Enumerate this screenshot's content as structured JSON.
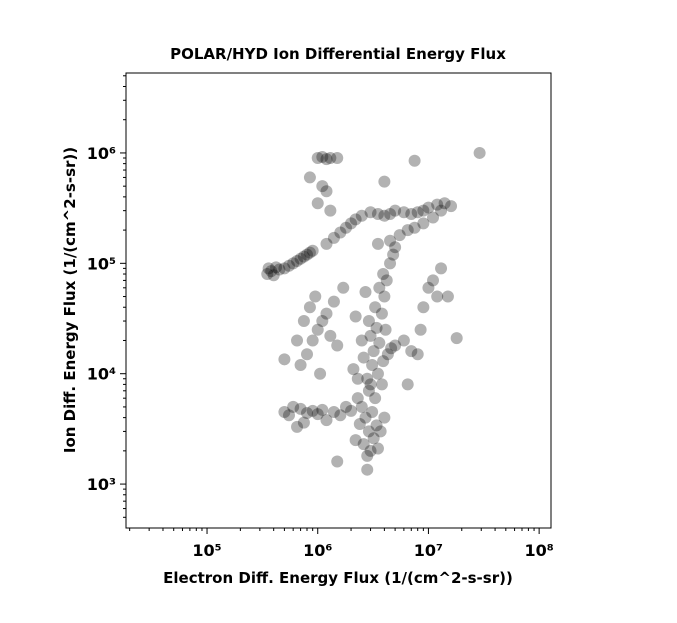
{
  "chart_data": {
    "type": "scatter",
    "title": "POLAR/HYD  Ion Differential Energy Flux",
    "x_label": "Electron Diff. Energy Flux (1/(cm^2-s-sr))",
    "y_label": "Ion Diff. Energy Flux (1/(cm^2-s-sr))",
    "x_scale": "log",
    "y_scale": "log",
    "xlim": [
      18535,
      128000000
    ],
    "ylim": [
      400,
      5300000
    ],
    "xticks": [
      {
        "value": 100000,
        "label": "10⁵"
      },
      {
        "value": 1000000,
        "label": "10⁶"
      },
      {
        "value": 10000000,
        "label": "10⁷"
      },
      {
        "value": 100000000,
        "label": "10⁸"
      }
    ],
    "yticks": [
      {
        "value": 1000,
        "label": "10³"
      },
      {
        "value": 10000,
        "label": "10⁴"
      },
      {
        "value": 100000,
        "label": "10⁵"
      },
      {
        "value": 1000000,
        "label": "10⁶"
      }
    ],
    "x_minor_ticks": [
      20000,
      30000,
      40000,
      50000,
      60000,
      70000,
      80000,
      90000,
      200000,
      300000,
      400000,
      500000,
      600000,
      700000,
      800000,
      900000,
      2000000,
      3000000,
      4000000,
      5000000,
      6000000,
      7000000,
      8000000,
      9000000,
      20000000,
      30000000,
      40000000,
      50000000,
      60000000,
      70000000,
      80000000,
      90000000
    ],
    "y_minor_ticks": [
      500,
      600,
      700,
      800,
      900,
      2000,
      3000,
      4000,
      5000,
      6000,
      7000,
      8000,
      9000,
      20000,
      30000,
      40000,
      50000,
      60000,
      70000,
      80000,
      90000,
      200000,
      300000,
      400000,
      500000,
      600000,
      700000,
      800000,
      900000,
      2000000,
      3000000,
      4000000,
      5000000
    ],
    "series": [
      {
        "color": "#000000",
        "opacity": 0.3,
        "x": [
          350000.0,
          380000.0,
          400000.0,
          450000.0,
          500000.0,
          550000.0,
          600000.0,
          650000.0,
          700000.0,
          750000.0,
          800000.0,
          850000.0,
          900000.0,
          360000.0,
          420000.0,
          2800000.0,
          3000000.0,
          2600000.0,
          3200000.0,
          2900000.0,
          3400000.0,
          2700000.0,
          3100000.0,
          2500000.0,
          3300000.0,
          2900000.0,
          3000000.0,
          2800000.0,
          3500000.0,
          3100000.0,
          2600000.0,
          3200000.0,
          3600000.0,
          3000000.0,
          3400000.0,
          2900000.0,
          3800000.0,
          3300000.0,
          4000000.0,
          3600000.0,
          4200000.0,
          3900000.0,
          4500000.0,
          4800000.0,
          5000000.0,
          2200000.0,
          2400000.0,
          3700000.0,
          4000000.0,
          2300000.0,
          3800000.0,
          2100000.0,
          4300000.0,
          2500000.0,
          4100000.0,
          3900000.0,
          2200000.0,
          4600000.0,
          2700000.0,
          3500000.0,
          500000.0,
          550000.0,
          600000.0,
          700000.0,
          800000.0,
          900000.0,
          1000000.0,
          1100000.0,
          1200000.0,
          1400000.0,
          1600000.0,
          1800000.0,
          2000000.0,
          650000.0,
          750000.0,
          1200000.0,
          1400000.0,
          1600000.0,
          1800000.0,
          2000000.0,
          2200000.0,
          2500000.0,
          3000000.0,
          3500000.0,
          4000000.0,
          4500000.0,
          5000000.0,
          6000000.0,
          7000000.0,
          8000000.0,
          9000000.0,
          10000000.0,
          12000000.0,
          14000000.0,
          16000000.0,
          3500000.0,
          4500000.0,
          5500000.0,
          6500000.0,
          7500000.0,
          9000000.0,
          11000000.0,
          13000000.0,
          1000000.0,
          1100000.0,
          1200000.0,
          1300000.0,
          1500000.0,
          1100000.0,
          1200000.0,
          1000000.0,
          1300000.0,
          850000.0,
          700000.0,
          800000.0,
          900000.0,
          1000000.0,
          1100000.0,
          850000.0,
          950000.0,
          1200000.0,
          1300000.0,
          1500000.0,
          750000.0,
          1050000.0,
          1400000.0,
          650000.0,
          1700000.0,
          5000000.0,
          6000000.0,
          7000000.0,
          8000000.0,
          9000000.0,
          10000000.0,
          11000000.0,
          12000000.0,
          6500000.0,
          8500000.0,
          15000000.0,
          13000000.0,
          29000000.0,
          18000000.0,
          7500000.0,
          500000.0,
          1500000.0,
          2800000.0,
          4000000.0,
          2300000.0
        ],
        "values": [
          80000.0,
          85000.0,
          78000.0,
          88000.0,
          90000.0,
          95000.0,
          100000.0,
          105000.0,
          110000.0,
          115000.0,
          120000.0,
          125000.0,
          130000.0,
          90000.0,
          92000.0,
          1800.0,
          2000.0,
          2300.0,
          2600.0,
          3000.0,
          3400.0,
          4000.0,
          4500.0,
          5000.0,
          6000.0,
          7000.0,
          8000.0,
          9000.0,
          10000.0,
          12000.0,
          14000.0,
          16000.0,
          19000.0,
          22000.0,
          26000.0,
          30000.0,
          35000.0,
          40000.0,
          50000.0,
          60000.0,
          70000.0,
          80000.0,
          100000.0,
          120000.0,
          140000.0,
          2500.0,
          3500.0,
          3000.0,
          4000.0,
          6000.0,
          8000.0,
          11000.0,
          15000.0,
          20000.0,
          25000.0,
          13000.0,
          33000.0,
          17000.0,
          55000.0,
          2100.0,
          4500.0,
          4200.0,
          5000.0,
          4800.0,
          4400.0,
          4600.0,
          4300.0,
          4700.0,
          3800.0,
          4500.0,
          4200.0,
          5000.0,
          4600.0,
          3300.0,
          3600.0,
          150000.0,
          170000.0,
          190000.0,
          210000.0,
          230000.0,
          250000.0,
          270000.0,
          290000.0,
          280000.0,
          270000.0,
          280000.0,
          300000.0,
          290000.0,
          280000.0,
          290000.0,
          300000.0,
          320000.0,
          340000.0,
          350000.0,
          330000.0,
          150000.0,
          160000.0,
          180000.0,
          200000.0,
          210000.0,
          230000.0,
          260000.0,
          300000.0,
          900000.0,
          920000.0,
          880000.0,
          900000.0,
          900000.0,
          500000.0,
          450000.0,
          350000.0,
          300000.0,
          600000.0,
          12000.0,
          15000.0,
          20000.0,
          25000.0,
          30000.0,
          40000.0,
          50000.0,
          35000.0,
          22000.0,
          18000.0,
          30000.0,
          10000.0,
          45000.0,
          20000.0,
          60000.0,
          18000.0,
          20000.0,
          16000.0,
          15000.0,
          40000.0,
          60000.0,
          70000.0,
          50000.0,
          8000.0,
          25000.0,
          50000.0,
          90000.0,
          1000000.0,
          21000.0,
          850000.0,
          13500.0,
          1600.0,
          1350.0,
          550000.0,
          9000.0
        ]
      }
    ]
  }
}
